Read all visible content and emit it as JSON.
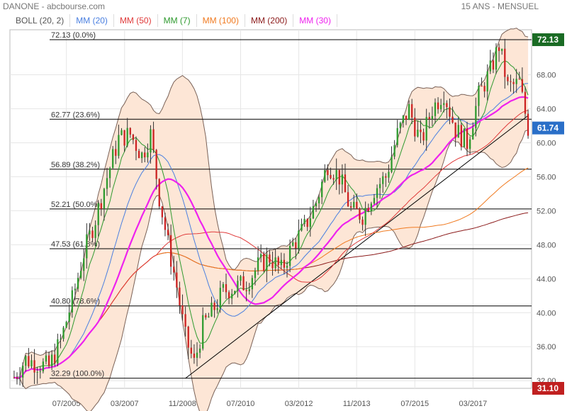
{
  "header": {
    "title": "DANONE - abcbourse.com",
    "period": "15 ANS - MENSUEL"
  },
  "legend": [
    {
      "label": "BOLL (20, 2)",
      "color": "#555555"
    },
    {
      "label": "MM (20)",
      "color": "#4a7fe0"
    },
    {
      "label": "MM (50)",
      "color": "#e03a3a"
    },
    {
      "label": "MM (7)",
      "color": "#2e9a2e"
    },
    {
      "label": "MM (100)",
      "color": "#f07a20"
    },
    {
      "label": "MM (200)",
      "color": "#8b1a1a"
    },
    {
      "label": "MM (30)",
      "color": "#ee22ee"
    }
  ],
  "chart_data": {
    "type": "candlestick",
    "ylim": [
      31.1,
      73.3
    ],
    "y_ticks": [
      "32.00",
      "36.00",
      "40.00",
      "44.00",
      "48.00",
      "52.00",
      "56.00",
      "60.00",
      "64.00",
      "68.00"
    ],
    "x_ticks": [
      {
        "label": "07/2005",
        "t": 2005.5
      },
      {
        "label": "03/2007",
        "t": 2007.17
      },
      {
        "label": "11/2008",
        "t": 2008.83
      },
      {
        "label": "07/2010",
        "t": 2010.5
      },
      {
        "label": "03/2012",
        "t": 2012.17
      },
      {
        "label": "11/2013",
        "t": 2013.83
      },
      {
        "label": "07/2015",
        "t": 2015.5
      },
      {
        "label": "03/2017",
        "t": 2017.17
      }
    ],
    "fib_levels": [
      {
        "label": "72.13  (0.0%)",
        "value": 72.13
      },
      {
        "label": "62.77  (23.6%)",
        "value": 62.77
      },
      {
        "label": "56.89  (38.2%)",
        "value": 56.89
      },
      {
        "label": "52.21  (50.0%)",
        "value": 52.21
      },
      {
        "label": "47.53  (61.8%)",
        "value": 47.53
      },
      {
        "label": "40.80  (78.6%)",
        "value": 40.8
      },
      {
        "label": "32.29  (100.0%)",
        "value": 32.29
      }
    ],
    "badges": [
      {
        "label": "72.13",
        "value": 72.13,
        "color": "#1a6b24"
      },
      {
        "label": "61.74",
        "value": 61.74,
        "color": "#2a6fc8"
      },
      {
        "label": "31.10",
        "value": 31.1,
        "color": "#c02020"
      }
    ],
    "trendline": {
      "t0": 2008.92,
      "p0": 32.29,
      "t1": 2018.75,
      "p1": 63.2
    },
    "closes": [
      [
        2004.0,
        32.4
      ],
      [
        2004.33,
        34.5
      ],
      [
        2004.67,
        34.0
      ],
      [
        2005.0,
        33.6
      ],
      [
        2005.33,
        36.6
      ],
      [
        2005.67,
        41.5
      ],
      [
        2006.0,
        47.0
      ],
      [
        2006.33,
        51.0
      ],
      [
        2006.67,
        56.0
      ],
      [
        2007.0,
        60.5
      ],
      [
        2007.33,
        61.0
      ],
      [
        2007.67,
        58.5
      ],
      [
        2007.92,
        61.0
      ],
      [
        2008.17,
        53.5
      ],
      [
        2008.42,
        48.0
      ],
      [
        2008.67,
        43.0
      ],
      [
        2008.92,
        37.0
      ],
      [
        2009.17,
        34.0
      ],
      [
        2009.42,
        38.5
      ],
      [
        2009.67,
        40.0
      ],
      [
        2010.0,
        42.5
      ],
      [
        2010.33,
        43.0
      ],
      [
        2010.67,
        43.5
      ],
      [
        2011.0,
        45.5
      ],
      [
        2011.33,
        46.5
      ],
      [
        2011.67,
        45.0
      ],
      [
        2012.0,
        48.0
      ],
      [
        2012.33,
        50.0
      ],
      [
        2012.67,
        53.0
      ],
      [
        2013.0,
        57.5
      ],
      [
        2013.33,
        56.0
      ],
      [
        2013.67,
        52.0
      ],
      [
        2014.0,
        51.5
      ],
      [
        2014.33,
        54.5
      ],
      [
        2014.67,
        56.0
      ],
      [
        2015.0,
        61.0
      ],
      [
        2015.33,
        64.0
      ],
      [
        2015.67,
        60.0
      ],
      [
        2016.0,
        64.0
      ],
      [
        2016.33,
        66.0
      ],
      [
        2016.67,
        61.5
      ],
      [
        2017.0,
        60.0
      ],
      [
        2017.33,
        65.5
      ],
      [
        2017.67,
        68.5
      ],
      [
        2017.92,
        71.5
      ],
      [
        2018.17,
        66.5
      ],
      [
        2018.5,
        67.0
      ],
      [
        2018.75,
        61.74
      ]
    ]
  }
}
